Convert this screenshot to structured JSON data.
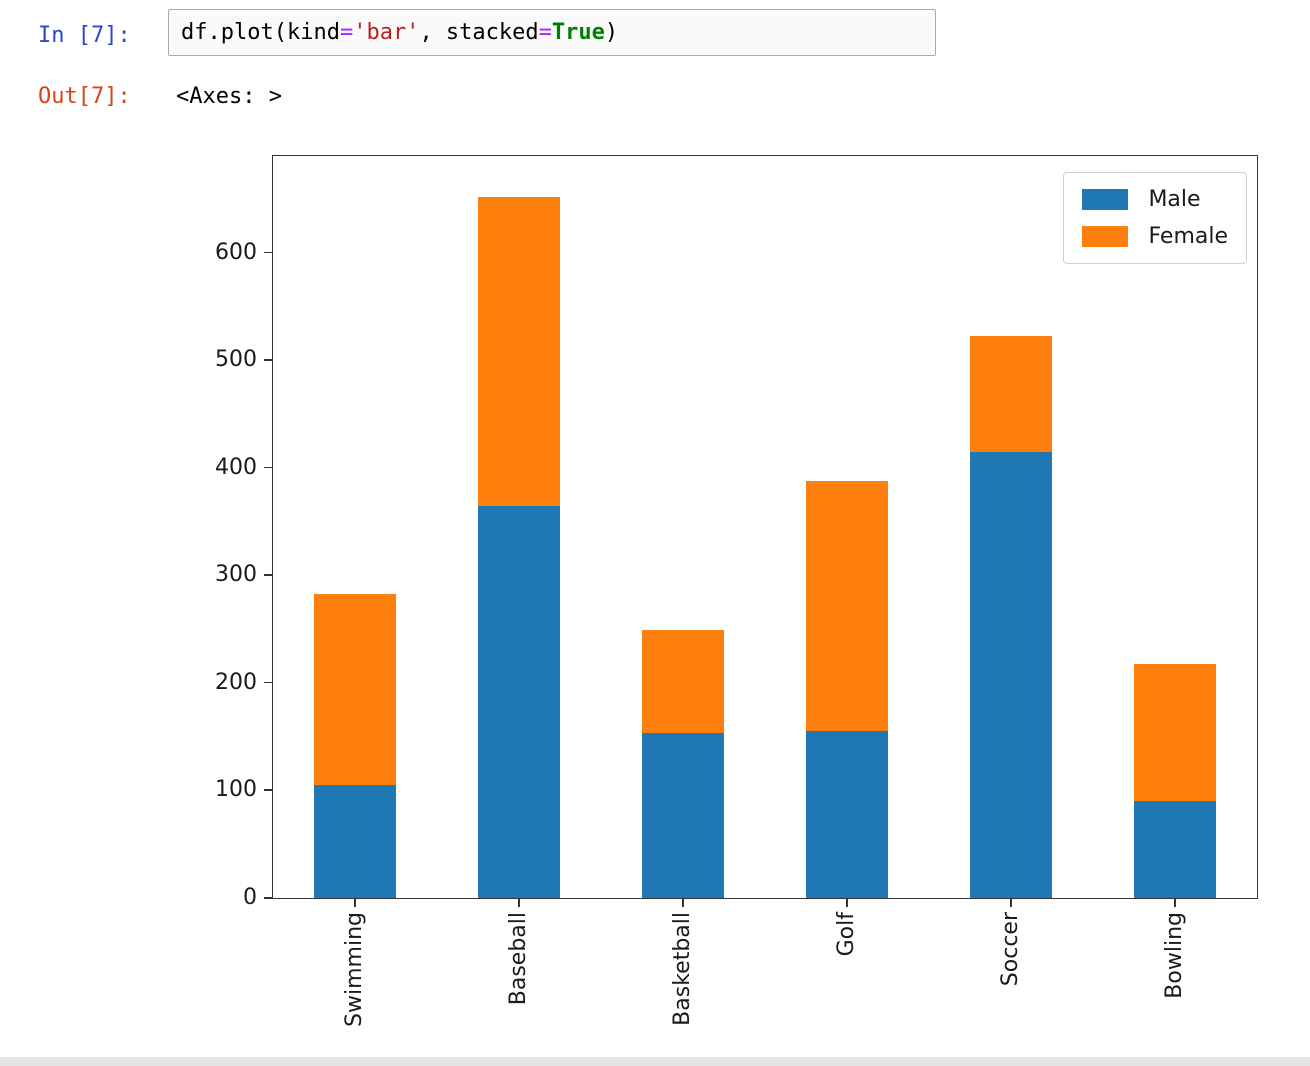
{
  "notebook": {
    "in_prompt": "In [7]:",
    "out_prompt": "Out[7]:",
    "output_text": "<Axes: >",
    "code_tokens": [
      {
        "text": "df.plot(kind",
        "type": "plain"
      },
      {
        "text": "=",
        "type": "operator"
      },
      {
        "text": "'bar'",
        "type": "string"
      },
      {
        "text": ", stacked",
        "type": "plain"
      },
      {
        "text": "=",
        "type": "operator"
      },
      {
        "text": "True",
        "type": "keyword"
      },
      {
        "text": ")",
        "type": "plain"
      }
    ]
  },
  "colors": {
    "in_prompt": "#2b46d0",
    "out_prompt": "#d84315",
    "code_plain": "#000000",
    "code_operator": "#aa22ff",
    "code_string": "#ba2121",
    "code_keyword": "#008000",
    "axis": "#333333",
    "tick_text": "#1a1a1a",
    "male": "#1f77b4",
    "female": "#ff7f0e"
  },
  "chart_data": {
    "type": "bar",
    "stacked": true,
    "title": "",
    "xlabel": "",
    "ylabel": "",
    "categories": [
      "Swimming",
      "Baseball",
      "Basketball",
      "Golf",
      "Soccer",
      "Bowling"
    ],
    "series": [
      {
        "name": "Male",
        "color": "#1f77b4",
        "values": [
          105,
          365,
          153,
          155,
          415,
          90
        ]
      },
      {
        "name": "Female",
        "color": "#ff7f0e",
        "values": [
          178,
          287,
          96,
          233,
          108,
          128
        ]
      }
    ],
    "stack_totals": [
      283,
      652,
      249,
      388,
      523,
      218
    ],
    "yticks": [
      0,
      100,
      200,
      300,
      400,
      500,
      600
    ],
    "ylim": [
      0,
      690
    ],
    "xtick_rotation": 90,
    "grid": false,
    "legend": {
      "position": "upper right",
      "labels": [
        "Male",
        "Female"
      ]
    }
  }
}
